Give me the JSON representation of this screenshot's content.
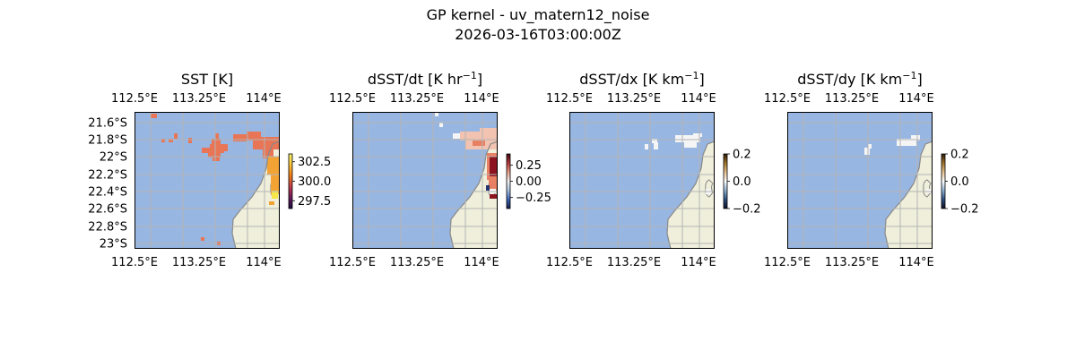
{
  "figure": {
    "title": "GP kernel - uv_matern12_noise",
    "subtitle": "2026-03-16T03:00:00Z"
  },
  "colors": {
    "ocean": "#98b6e2",
    "land": "#efefdb",
    "coast": "#888888",
    "grid": "#b4b4b4",
    "sst_warm": "#e87656",
    "sst_hot": "#f3a334",
    "sst_yellow": "#f6e64a",
    "deriv_light": "#f2c3b0",
    "deriv_red": "#e88163",
    "deriv_dark": "#8b1420",
    "deriv_white": "#f5f5f5",
    "deriv_navy": "#27376e"
  },
  "panels": [
    {
      "title": "SST [K]",
      "title_unit_sup": "",
      "title_suffix": "",
      "top_ticks": [
        "112.5°E",
        "113.25°E",
        "114°E"
      ],
      "bottom_ticks": [
        "112.5°E",
        "113.25°E",
        "114°E"
      ],
      "left_ticks": [
        "21.6°S",
        "21.8°S",
        "22°S",
        "22.2°S",
        "22.4°S",
        "22.6°S",
        "22.8°S",
        "23°S"
      ],
      "colorbar": {
        "ticks": [
          "302.5",
          "300.0",
          "297.5"
        ],
        "tick_values": [
          302.5,
          300.0,
          297.5
        ],
        "range": [
          296.5,
          303.5
        ],
        "cmap": "thermal"
      }
    },
    {
      "title": "dSST/dt [K hr",
      "title_unit_sup": "−1",
      "title_suffix": "]",
      "top_ticks": [
        "112.5°E",
        "113.25°E",
        "114°E"
      ],
      "bottom_ticks": [
        "112.5°E",
        "113.25°E",
        "114°E"
      ],
      "left_ticks": [],
      "colorbar": {
        "ticks": [
          "0.25",
          "0.00",
          "−0.25"
        ],
        "tick_values": [
          0.25,
          0.0,
          -0.25
        ],
        "range": [
          -0.42,
          0.42
        ],
        "cmap": "balance"
      }
    },
    {
      "title": "dSST/dx [K km",
      "title_unit_sup": "−1",
      "title_suffix": "]",
      "top_ticks": [
        "112.5°E",
        "113.25°E",
        "114°E"
      ],
      "bottom_ticks": [
        "112.5°E",
        "113.25°E",
        "114°E"
      ],
      "left_ticks": [],
      "colorbar": {
        "ticks": [
          "0.2",
          "0.0",
          "−0.2"
        ],
        "tick_values": [
          0.2,
          0.0,
          -0.2
        ],
        "range": [
          -0.2,
          0.2
        ],
        "cmap": "diverging"
      }
    },
    {
      "title": "dSST/dy [K km",
      "title_unit_sup": "−1",
      "title_suffix": "]",
      "top_ticks": [
        "112.5°E",
        "113.25°E",
        "114°E"
      ],
      "bottom_ticks": [
        "112.5°E",
        "113.25°E",
        "114°E"
      ],
      "left_ticks": [],
      "colorbar": {
        "ticks": [
          "0.2",
          "0.0",
          "−0.2"
        ],
        "tick_values": [
          0.2,
          0.0,
          -0.2
        ],
        "range": [
          -0.2,
          0.2
        ],
        "cmap": "diverging"
      }
    }
  ]
}
